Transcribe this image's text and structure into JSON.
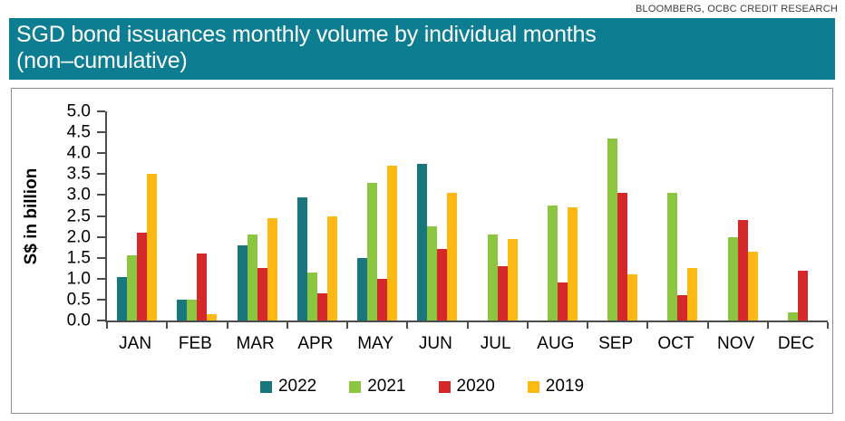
{
  "header": {
    "source": "BLOOMBERG, OCBC CREDIT RESEARCH",
    "title_line1": "SGD bond issuances monthly volume by individual months",
    "title_line2": "(non–cumulative)",
    "banner_color": "#0d7e92"
  },
  "chart_data": {
    "type": "bar",
    "title": "SGD bond issuances monthly volume by individual months (non–cumulative)",
    "ylabel": "S$ in billion",
    "ylim": [
      0,
      5
    ],
    "ytick_step": 0.5,
    "yticks": [
      "5.0",
      "4.5",
      "4.0",
      "3.5",
      "3.0",
      "2.5",
      "2.0",
      "1.5",
      "1.0",
      "0.5",
      "0.0"
    ],
    "categories": [
      "JAN",
      "FEB",
      "MAR",
      "APR",
      "MAY",
      "JUN",
      "JUL",
      "AUG",
      "SEP",
      "OCT",
      "NOV",
      "DEC"
    ],
    "grid": false,
    "legend_position": "bottom",
    "series": [
      {
        "name": "2022",
        "color": "#17777d",
        "values": [
          1.05,
          0.5,
          1.8,
          2.95,
          1.5,
          3.75,
          null,
          null,
          null,
          null,
          null,
          null
        ]
      },
      {
        "name": "2021",
        "color": "#8cc540",
        "values": [
          1.55,
          0.5,
          2.05,
          1.15,
          3.3,
          2.25,
          2.05,
          2.75,
          4.35,
          3.05,
          2.0,
          0.2
        ]
      },
      {
        "name": "2020",
        "color": "#d5282a",
        "values": [
          2.1,
          1.6,
          1.25,
          0.65,
          1.0,
          1.7,
          1.3,
          0.9,
          3.05,
          0.6,
          2.4,
          1.2
        ]
      },
      {
        "name": "2019",
        "color": "#fdb813",
        "values": [
          3.5,
          0.15,
          2.45,
          2.5,
          3.7,
          3.05,
          1.95,
          2.7,
          1.1,
          1.25,
          1.65,
          null
        ]
      }
    ]
  }
}
